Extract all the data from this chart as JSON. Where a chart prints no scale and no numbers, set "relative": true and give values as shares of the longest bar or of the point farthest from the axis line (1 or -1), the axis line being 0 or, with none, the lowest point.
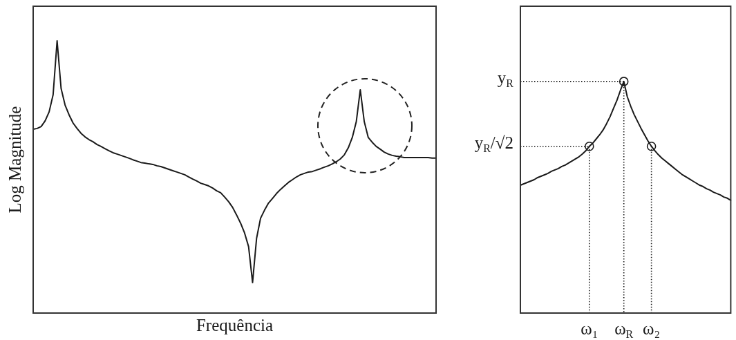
{
  "chart_data": [
    {
      "type": "line",
      "xlabel": "Frequência",
      "ylabel": "Log Magnitude",
      "relative": true,
      "marker": "none",
      "line_style": "solid",
      "categories": [
        null,
        null,
        null,
        null,
        null,
        null,
        null,
        null,
        null,
        null,
        null,
        null,
        null,
        null,
        null,
        null,
        null,
        null,
        null,
        null,
        null,
        null,
        null,
        null,
        null,
        null,
        null,
        null,
        null,
        null,
        null,
        null,
        null,
        null,
        null,
        null,
        null,
        null,
        null,
        null,
        null,
        null,
        null,
        null,
        null,
        null,
        null,
        null,
        null,
        null,
        null,
        null,
        null,
        null,
        null,
        null,
        null,
        null,
        null,
        null,
        null,
        null,
        null,
        null,
        null,
        null,
        null,
        null,
        null,
        null,
        null,
        null,
        null,
        null,
        null,
        null,
        null,
        null,
        null,
        null,
        null,
        null,
        null,
        null,
        null,
        null,
        null,
        null,
        null,
        null,
        null,
        null,
        null,
        null,
        null,
        null,
        null,
        null,
        null,
        null,
        null,
        null
      ],
      "series": [
        {
          "color": "#1a1a1a",
          "values": [
            0.675,
            0.678,
            0.685,
            0.706,
            0.739,
            0.802,
            1,
            0.825,
            0.764,
            0.728,
            0.698,
            0.678,
            0.66,
            0.647,
            0.637,
            0.629,
            0.619,
            0.612,
            0.604,
            0.596,
            0.589,
            0.584,
            0.579,
            0.574,
            0.569,
            0.563,
            0.558,
            0.553,
            0.551,
            0.548,
            0.546,
            0.541,
            0.538,
            0.533,
            0.528,
            0.523,
            0.518,
            0.513,
            0.508,
            0.5,
            0.492,
            0.485,
            0.477,
            0.472,
            0.467,
            0.459,
            0.449,
            0.442,
            0.426,
            0.409,
            0.388,
            0.36,
            0.33,
            0.294,
            0.244,
            0.112,
            0.274,
            0.348,
            0.378,
            0.404,
            0.421,
            0.439,
            0.454,
            0.467,
            0.48,
            0.49,
            0.5,
            0.508,
            0.513,
            0.518,
            0.52,
            0.525,
            0.53,
            0.536,
            0.541,
            0.548,
            0.556,
            0.566,
            0.581,
            0.607,
            0.645,
            0.703,
            0.82,
            0.703,
            0.645,
            0.627,
            0.612,
            0.602,
            0.591,
            0.584,
            0.579,
            0.576,
            0.574,
            0.571,
            0.571,
            0.571,
            0.571,
            0.571,
            0.571,
            0.571,
            0.569,
            0.569
          ]
        }
      ]
    },
    {
      "type": "line",
      "relative": true,
      "marker": "none",
      "line_style": "solid",
      "categories": [
        null,
        null,
        null,
        null,
        null,
        null,
        null,
        null,
        null,
        null,
        null,
        null,
        null,
        null,
        null,
        null,
        null,
        null,
        null,
        null,
        "ω₁",
        null,
        null,
        null,
        null,
        null,
        null,
        null,
        null,
        null,
        "ω$_{R}$",
        null,
        null,
        null,
        null,
        null,
        null,
        null,
        "ω₂",
        null,
        null,
        null,
        null,
        null,
        null,
        null,
        null,
        null,
        null,
        null,
        null,
        null,
        null,
        null,
        null,
        null,
        null,
        null,
        null,
        null,
        null,
        null
      ],
      "annotations": [
        "y$_{R}$",
        "y$_{R}$/√2"
      ],
      "series": [
        {
          "color": "#1a1a1a",
          "values": [
            0.552,
            0.558,
            0.564,
            0.57,
            0.576,
            0.585,
            0.591,
            0.597,
            0.603,
            0.612,
            0.618,
            0.624,
            0.633,
            0.639,
            0.648,
            0.657,
            0.666,
            0.675,
            0.687,
            0.701,
            0.72,
            0.734,
            0.752,
            0.77,
            0.791,
            0.818,
            0.848,
            0.884,
            0.919,
            0.961,
            1,
            0.934,
            0.893,
            0.857,
            0.827,
            0.797,
            0.77,
            0.743,
            0.72,
            0.701,
            0.684,
            0.669,
            0.657,
            0.645,
            0.633,
            0.621,
            0.609,
            0.597,
            0.588,
            0.579,
            0.57,
            0.561,
            0.552,
            0.546,
            0.537,
            0.531,
            0.522,
            0.516,
            0.51,
            0.501,
            0.496,
            0.487
          ]
        },
        {
          "color": "#1a1a1a",
          "line_style": "dotted",
          "values": [
            0.72,
            0.72,
            0.72,
            0.72,
            0.72,
            0.72,
            0.72,
            0.72,
            0.72,
            0.72,
            0.72,
            0.72,
            0.72,
            0.72,
            0.72,
            0.72,
            0.72,
            0.72,
            0.72,
            0.72,
            0.72,
            null,
            null,
            null,
            null,
            null,
            null,
            null,
            null,
            null,
            null,
            null,
            null,
            null,
            null,
            null,
            null,
            null,
            null,
            null,
            null,
            null,
            null,
            null,
            null,
            null,
            null,
            null,
            null,
            null,
            null,
            null,
            null,
            null,
            null,
            null,
            null,
            null,
            null,
            null,
            null,
            null
          ]
        },
        {
          "color": "#1a1a1a",
          "line_style": "dotted",
          "values": [
            1,
            1,
            1,
            1,
            1,
            1,
            1,
            1,
            1,
            1,
            1,
            1,
            1,
            1,
            1,
            1,
            1,
            1,
            1,
            1,
            1,
            1,
            1,
            1,
            1,
            1,
            1,
            1,
            1,
            1,
            1,
            null,
            null,
            null,
            null,
            null,
            null,
            null,
            null,
            null,
            null,
            null,
            null,
            null,
            null,
            null,
            null,
            null,
            null,
            null,
            null,
            null,
            null,
            null,
            null,
            null,
            null,
            null,
            null,
            null,
            null,
            null
          ]
        },
        {
          "color": "#1a1a1a",
          "line_style": "dotted",
          "x": [
            "ω₁",
            "ω₁"
          ],
          "values": [
            0.72,
            0
          ]
        },
        {
          "color": "#1a1a1a",
          "line_style": "dotted",
          "x": [
            "ω$_{R}$",
            "ω$_{R}$"
          ],
          "values": [
            1,
            0
          ]
        },
        {
          "color": "#1a1a1a",
          "line_style": "dotted",
          "x": [
            "ω₂",
            "ω₂"
          ],
          "values": [
            0.72,
            0
          ]
        },
        {
          "type": "scatter",
          "color": "#1a1a1a",
          "marker": "circle",
          "x": [
            "ω₁",
            "ω$_{R}$",
            "ω₂"
          ],
          "values": [
            0.72,
            1,
            0.72
          ]
        }
      ]
    }
  ]
}
